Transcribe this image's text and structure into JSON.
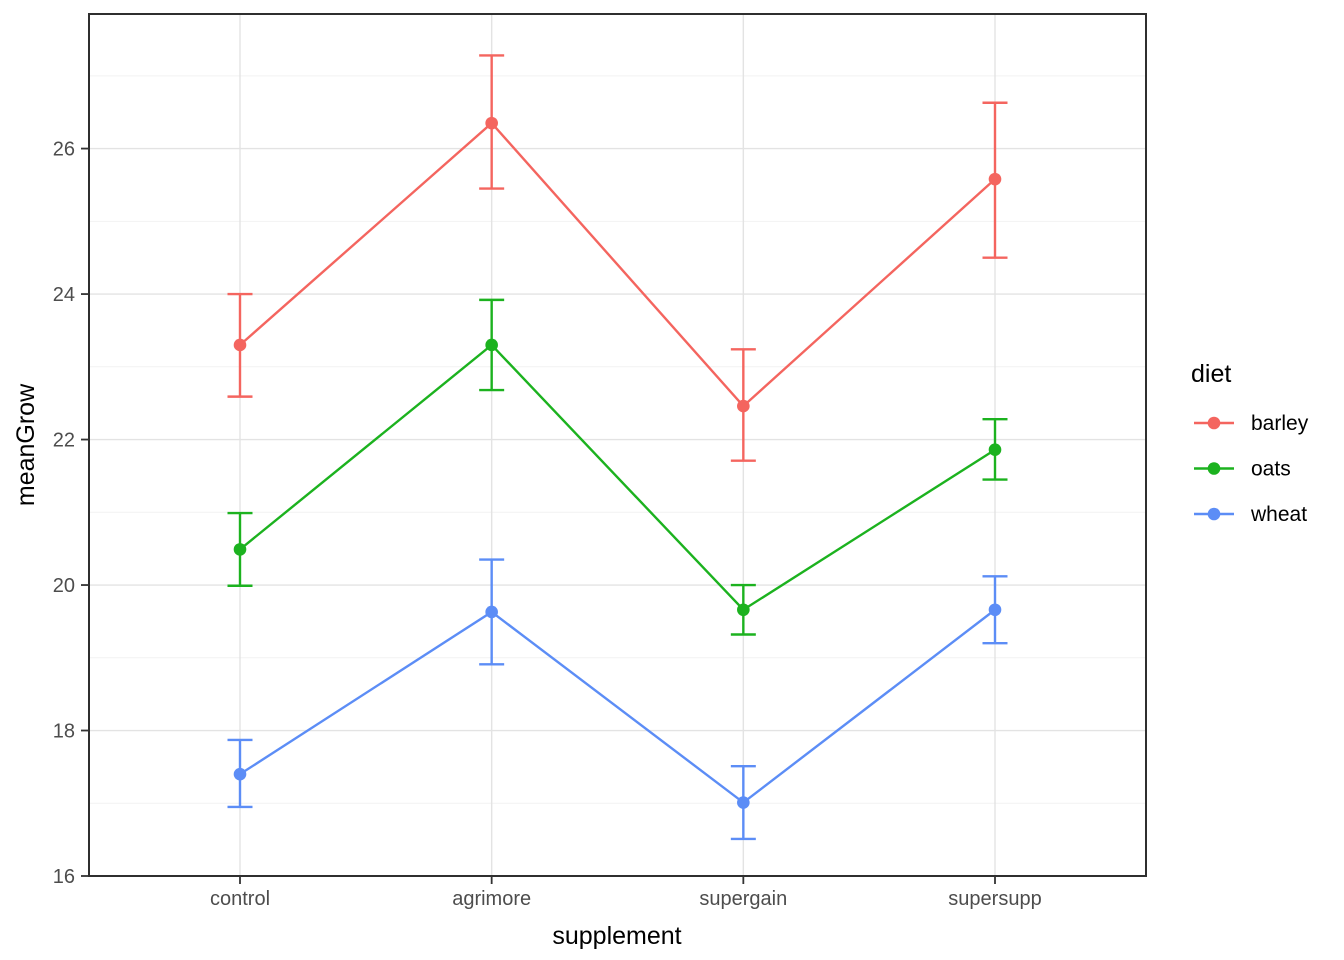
{
  "chart_data": {
    "type": "line",
    "title": "",
    "xlabel": "supplement",
    "ylabel": "meanGrow",
    "categories": [
      "control",
      "agrimore",
      "supergain",
      "supersupp"
    ],
    "y_ticks": [
      16,
      18,
      20,
      22,
      24,
      26
    ],
    "ylim": [
      16,
      27.85
    ],
    "grid": "horizontal major+minor light gray, vertical at each category",
    "legend_position": "right-middle",
    "legend_title": "diet",
    "point_style": "filled circle with vertical error bar (mean ± SE)",
    "series": [
      {
        "name": "barley",
        "color": "#F4655F",
        "values": [
          23.3,
          26.35,
          22.46,
          25.58
        ],
        "err_low": [
          22.59,
          25.45,
          21.71,
          24.5
        ],
        "err_high": [
          24.0,
          27.28,
          23.24,
          26.63
        ]
      },
      {
        "name": "oats",
        "color": "#1CB21F",
        "values": [
          20.49,
          23.3,
          19.66,
          21.86
        ],
        "err_low": [
          19.99,
          22.68,
          19.32,
          21.45
        ],
        "err_high": [
          20.99,
          23.92,
          20.0,
          22.28
        ]
      },
      {
        "name": "wheat",
        "color": "#5C8DF6",
        "values": [
          17.4,
          19.63,
          17.01,
          19.66
        ],
        "err_low": [
          16.95,
          18.91,
          16.51,
          19.2
        ],
        "err_high": [
          17.87,
          20.35,
          17.51,
          20.12
        ]
      }
    ]
  },
  "colors": {
    "panel_background": "#ffffff",
    "panel_border": "#2f2f2f",
    "grid_major": "#e3e3e3",
    "grid_minor": "#f2f2f2",
    "tick_mark": "#333333",
    "tick_label": "#4d4d4d",
    "axis_title": "#000000",
    "legend_text": "#000000"
  }
}
